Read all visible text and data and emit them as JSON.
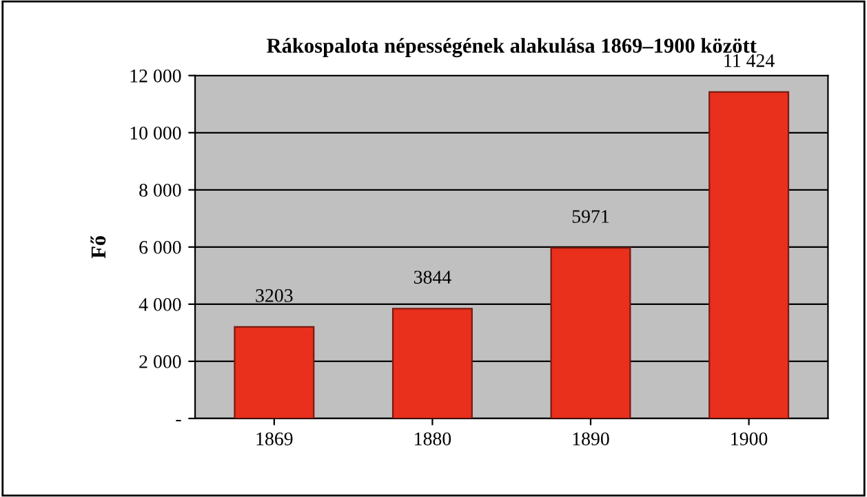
{
  "chart_data": {
    "type": "bar",
    "title": "Rákospalota népességének alakulása 1869–1900 között",
    "ylabel": "Fő",
    "categories": [
      "1869",
      "1880",
      "1890",
      "1900"
    ],
    "values": [
      3203,
      3844,
      5971,
      11424
    ],
    "value_labels": [
      "3203",
      "3844",
      "5971",
      "11 424"
    ],
    "color": "#e8301c",
    "ylim": [
      0,
      12000
    ],
    "yticks": [
      {
        "value": 0,
        "label": "-"
      },
      {
        "value": 2000,
        "label": "2 000"
      },
      {
        "value": 4000,
        "label": "4 000"
      },
      {
        "value": 6000,
        "label": "6 000"
      },
      {
        "value": 8000,
        "label": "8 000"
      },
      {
        "value": 10000,
        "label": "10 000"
      },
      {
        "value": 12000,
        "label": "12 000"
      }
    ],
    "grid": "y",
    "legend": false
  }
}
